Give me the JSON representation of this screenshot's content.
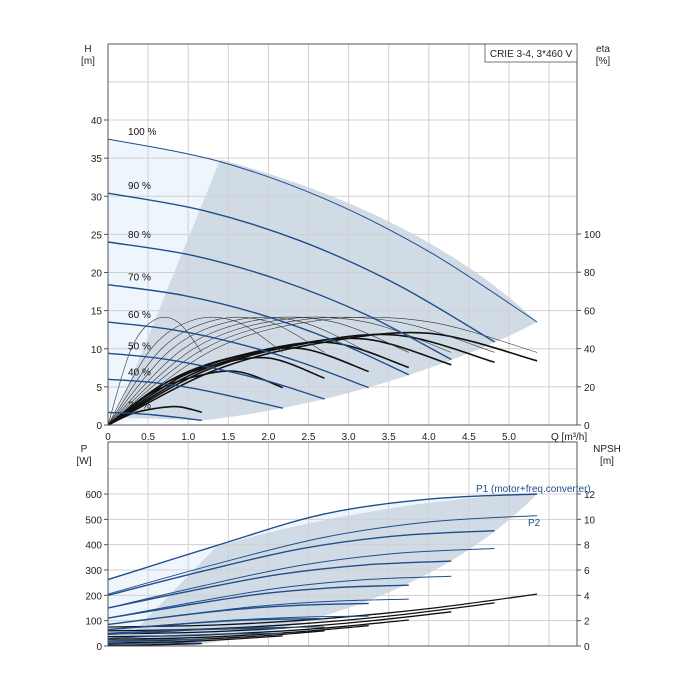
{
  "title_box": "CRIE 3-4, 3*460 V",
  "colors": {
    "curve": "#1f4e8c",
    "eta": "#111111",
    "gray_area": "#d0dbe6",
    "light_area": "#eef5fc",
    "grid": "#d0d0d0"
  },
  "chart_data": [
    {
      "type": "line",
      "name": "head-efficiency",
      "xlabel": "Q [m³/h]",
      "ylabel": "H",
      "yunit": "[m]",
      "y2label": "eta",
      "y2unit": "[%]",
      "xlim": [
        0,
        5.85
      ],
      "ylim": [
        0,
        50
      ],
      "y2lim": [
        0,
        125
      ],
      "xticks": [
        "0",
        "0.5",
        "1.0",
        "1.5",
        "2.0",
        "2.5",
        "3.0",
        "3.5",
        "4.0",
        "4.5",
        "5.0"
      ],
      "xtick_values": [
        0,
        0.5,
        1,
        1.5,
        2,
        2.5,
        3,
        3.5,
        4,
        4.5,
        5
      ],
      "yticks": [
        0,
        5,
        10,
        15,
        20,
        25,
        30,
        35,
        40
      ],
      "y2ticks": [
        0,
        20,
        40,
        60,
        80,
        100
      ],
      "grid": true,
      "series": [
        {
          "label": "100 %",
          "Q": [
            0,
            1.34,
            2.68,
            4.01,
            5.35
          ],
          "H": [
            37.5,
            34.7,
            29.76,
            22.7,
            13.51
          ],
          "eta_pump": [
            0,
            40,
            55,
            54,
            38
          ],
          "eta_total": [
            0,
            28.8,
            43.2,
            48,
            33.6
          ]
        },
        {
          "label": "90 %",
          "Q": [
            0,
            1.2,
            2.41,
            3.61,
            4.82
          ],
          "H": [
            30.4,
            28.1,
            24.1,
            18.4,
            10.9
          ],
          "eta_pump": [
            0,
            40,
            55,
            54,
            38
          ],
          "eta_total": [
            0,
            28.2,
            42.3,
            47,
            32.9
          ]
        },
        {
          "label": "80 %",
          "Q": [
            0,
            1.07,
            2.14,
            3.21,
            4.28
          ],
          "H": [
            24.0,
            22.2,
            19.0,
            14.5,
            8.6
          ],
          "eta_pump": [
            0,
            40,
            55,
            54,
            38
          ],
          "eta_total": [
            0,
            27,
            40.5,
            45,
            31.5
          ]
        },
        {
          "label": "70 %",
          "Q": [
            0,
            0.94,
            1.87,
            2.81,
            3.75
          ],
          "H": [
            18.4,
            17.0,
            14.6,
            11.1,
            6.6
          ],
          "eta_pump": [
            0,
            40,
            55,
            54,
            38
          ],
          "eta_total": [
            0,
            25.8,
            38.7,
            43,
            30.1
          ]
        },
        {
          "label": "60 %",
          "Q": [
            0,
            0.8,
            1.61,
            2.41,
            3.25
          ],
          "H": [
            13.5,
            12.5,
            10.7,
            8.2,
            4.9
          ],
          "eta_pump": [
            0,
            40,
            55,
            54,
            38
          ],
          "eta_total": [
            0,
            24,
            36,
            40,
            28
          ]
        },
        {
          "label": "50 %",
          "Q": [
            0,
            0.67,
            1.34,
            2.01,
            2.7
          ],
          "H": [
            9.4,
            8.7,
            7.4,
            5.7,
            3.4
          ],
          "eta_pump": [
            0,
            40,
            55,
            54,
            38
          ],
          "eta_total": [
            0,
            21,
            31.5,
            35,
            24.5
          ]
        },
        {
          "label": "40 %",
          "Q": [
            0,
            0.54,
            1.07,
            1.61,
            2.18
          ],
          "H": [
            6.0,
            5.6,
            4.8,
            3.6,
            2.2
          ],
          "eta_pump": [
            0,
            40,
            55,
            54,
            38
          ],
          "eta_total": [
            0,
            16.8,
            25.2,
            28,
            19.6
          ]
        },
        {
          "label": "21 %",
          "Q": [
            0,
            0.29,
            0.58,
            0.87,
            1.17
          ],
          "H": [
            1.65,
            1.53,
            1.31,
            1.0,
            0.6
          ],
          "eta_pump": [
            0,
            40,
            55,
            54,
            38
          ],
          "eta_total": [
            0,
            5.8,
            8.6,
            9.6,
            6.7
          ]
        }
      ],
      "area_boundary": {
        "Q": [
          1.4,
          0.09
        ],
        "H": [
          34.8,
          1.0
        ]
      }
    },
    {
      "type": "line",
      "name": "power-npsh",
      "ylabel": "P",
      "yunit": "[W]",
      "y2label": "NPSH",
      "y2unit": "[m]",
      "xlim": [
        0,
        5.85
      ],
      "ylim": [
        0,
        800
      ],
      "y2lim": [
        0,
        16
      ],
      "yticks": [
        0,
        100,
        200,
        300,
        400,
        500,
        600
      ],
      "y2ticks": [
        0,
        2,
        4,
        6,
        8,
        10,
        12
      ],
      "grid": true,
      "annotations": {
        "p1": "P1 (motor+freq.converter)",
        "p2": "P2"
      },
      "series": [
        {
          "Q": [
            0,
            1.34,
            2.68,
            4.01,
            5.35
          ],
          "P1": [
            262,
            395,
            520,
            580,
            600
          ],
          "P2": [
            205,
            323,
            428,
            490,
            515
          ],
          "NPSH": [
            1.5,
            1.66,
            2.15,
            2.96,
            4.1
          ]
        },
        {
          "Q": [
            0,
            1.2,
            2.41,
            3.61,
            4.82
          ],
          "P1": [
            200,
            297,
            384,
            435,
            455
          ],
          "P2": [
            150,
            239,
            319,
            366,
            385
          ],
          "NPSH": [
            1.2,
            1.34,
            1.75,
            2.44,
            3.4
          ]
        },
        {
          "Q": [
            0,
            1.07,
            2.14,
            3.21,
            4.28
          ],
          "P1": [
            150,
            220,
            283,
            320,
            335
          ],
          "P2": [
            110,
            173,
            229,
            262,
            275
          ],
          "NPSH": [
            0.96,
            1.07,
            1.4,
            1.94,
            2.7
          ]
        },
        {
          "Q": [
            0,
            0.94,
            1.87,
            2.81,
            3.75
          ],
          "P1": [
            110,
            159,
            204,
            230,
            240
          ],
          "P2": [
            85,
            123,
            157,
            177,
            185
          ],
          "NPSH": [
            0.74,
            0.82,
            1.07,
            1.48,
            2.05
          ]
        },
        {
          "Q": [
            0,
            0.8,
            1.61,
            2.41,
            3.25
          ],
          "P1": [
            85,
            117,
            145,
            161,
            168
          ],
          "P2": [
            65,
            85,
            103,
            114,
            118
          ],
          "NPSH": [
            0.54,
            0.61,
            0.81,
            1.14,
            1.6
          ]
        },
        {
          "Q": [
            0,
            0.67,
            1.34,
            2.01,
            2.7
          ],
          "P1": [
            65,
            81,
            96,
            105,
            108
          ],
          "P2": [
            45,
            56,
            67,
            73,
            75
          ],
          "NPSH": [
            0.38,
            0.43,
            0.59,
            0.84,
            1.2
          ]
        },
        {
          "Q": [
            0,
            0.54,
            1.07,
            1.61,
            2.18
          ],
          "P1": [
            50,
            58,
            64,
            68,
            70
          ],
          "P2": [
            30,
            38,
            44,
            48,
            50
          ],
          "NPSH": [
            0.24,
            0.28,
            0.38,
            0.56,
            0.8
          ]
        },
        {
          "Q": [
            0,
            0.29,
            0.58,
            0.87,
            1.17
          ],
          "P1": [
            20,
            22,
            24,
            25,
            25
          ],
          "P2": [
            8,
            10,
            11,
            12,
            12
          ],
          "NPSH": [
            0.07,
            0.08,
            0.1,
            0.14,
            0.2
          ]
        }
      ],
      "area_boundary": {
        "Q": [
          1.35,
          0.15
        ],
        "P": [
          392,
          0
        ]
      }
    }
  ]
}
